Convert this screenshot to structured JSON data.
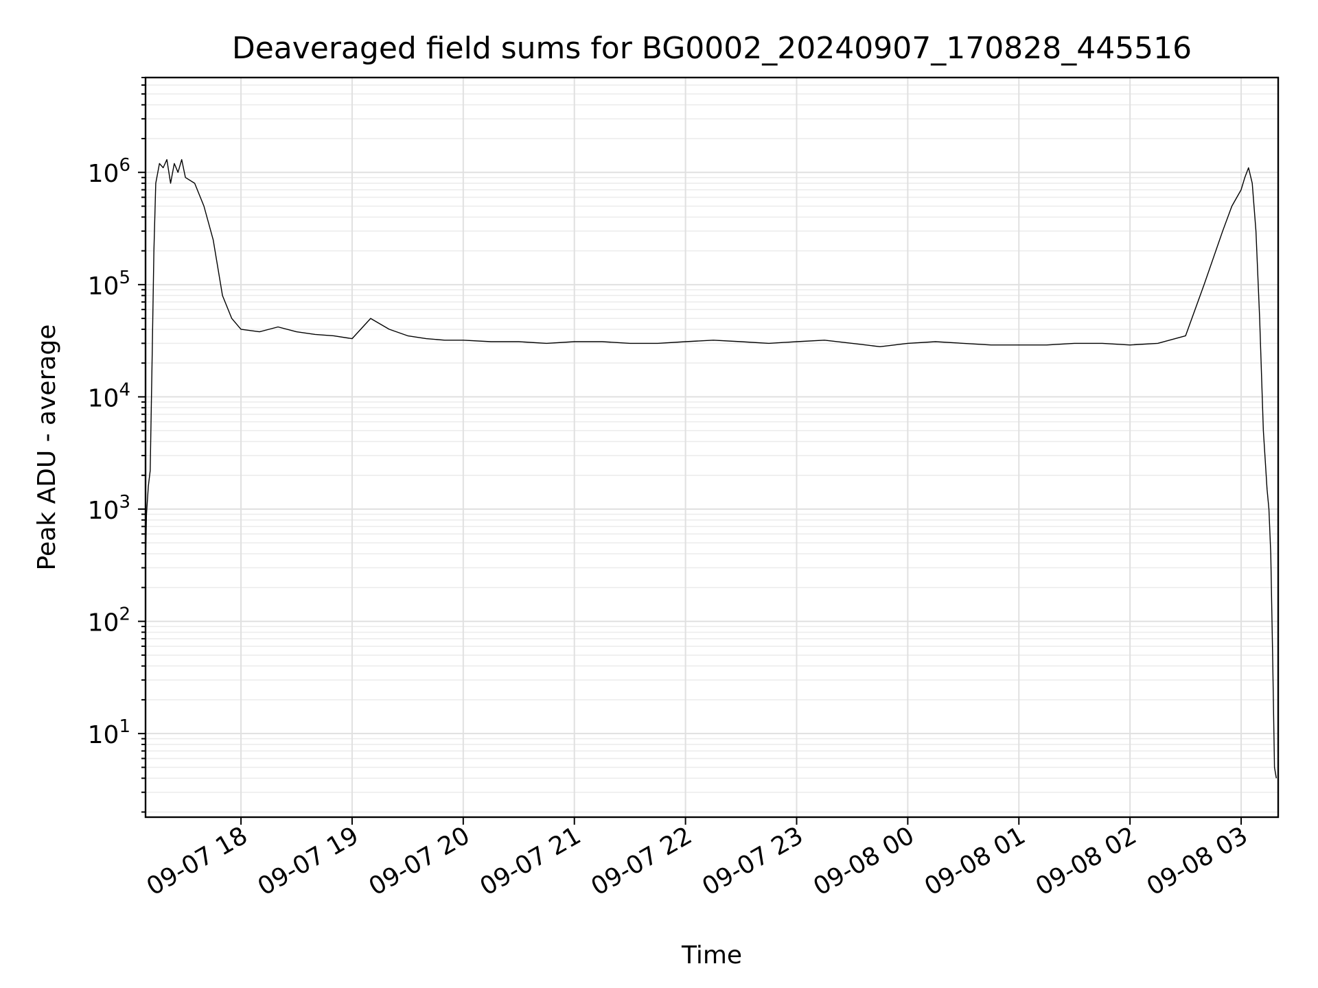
{
  "chart_data": {
    "type": "line",
    "title": "Deaveraged field sums for BG0002_20240907_170828_445516",
    "xlabel": "Time",
    "ylabel": "Peak ADU - average",
    "y_scale": "log",
    "ylim": [
      1.8,
      7000000
    ],
    "xlim": [
      "2024-09-07 17:08:28",
      "2024-09-08 03:20:00"
    ],
    "grid": true,
    "legend": "none",
    "line_color": "#000000",
    "x_ticks": [
      {
        "value": "2024-09-07 18:00",
        "label": "09-07 18"
      },
      {
        "value": "2024-09-07 19:00",
        "label": "09-07 19"
      },
      {
        "value": "2024-09-07 20:00",
        "label": "09-07 20"
      },
      {
        "value": "2024-09-07 21:00",
        "label": "09-07 21"
      },
      {
        "value": "2024-09-07 22:00",
        "label": "09-07 22"
      },
      {
        "value": "2024-09-07 23:00",
        "label": "09-07 23"
      },
      {
        "value": "2024-09-08 00:00",
        "label": "09-08 00"
      },
      {
        "value": "2024-09-08 01:00",
        "label": "09-08 01"
      },
      {
        "value": "2024-09-08 02:00",
        "label": "09-08 02"
      },
      {
        "value": "2024-09-08 03:00",
        "label": "09-08 03"
      }
    ],
    "y_ticks": [
      {
        "value": 10,
        "base": "10",
        "exp": "1"
      },
      {
        "value": 100,
        "base": "10",
        "exp": "2"
      },
      {
        "value": 1000,
        "base": "10",
        "exp": "3"
      },
      {
        "value": 10000,
        "base": "10",
        "exp": "4"
      },
      {
        "value": 100000,
        "base": "10",
        "exp": "5"
      },
      {
        "value": 1000000,
        "base": "10",
        "exp": "6"
      }
    ],
    "series": [
      {
        "x": [
          "2024-09-07 17:08:28",
          "2024-09-07 17:09",
          "2024-09-07 17:10",
          "2024-09-07 17:11",
          "2024-09-07 17:12",
          "2024-09-07 17:13",
          "2024-09-07 17:14",
          "2024-09-07 17:16",
          "2024-09-07 17:18",
          "2024-09-07 17:20",
          "2024-09-07 17:22",
          "2024-09-07 17:24",
          "2024-09-07 17:26",
          "2024-09-07 17:28",
          "2024-09-07 17:30",
          "2024-09-07 17:35",
          "2024-09-07 17:40",
          "2024-09-07 17:45",
          "2024-09-07 17:50",
          "2024-09-07 17:55",
          "2024-09-07 18:00",
          "2024-09-07 18:10",
          "2024-09-07 18:20",
          "2024-09-07 18:30",
          "2024-09-07 18:40",
          "2024-09-07 18:50",
          "2024-09-07 19:00",
          "2024-09-07 19:10",
          "2024-09-07 19:20",
          "2024-09-07 19:30",
          "2024-09-07 19:40",
          "2024-09-07 19:50",
          "2024-09-07 20:00",
          "2024-09-07 20:15",
          "2024-09-07 20:30",
          "2024-09-07 20:45",
          "2024-09-07 21:00",
          "2024-09-07 21:15",
          "2024-09-07 21:30",
          "2024-09-07 21:45",
          "2024-09-07 22:00",
          "2024-09-07 22:15",
          "2024-09-07 22:30",
          "2024-09-07 22:45",
          "2024-09-07 23:00",
          "2024-09-07 23:15",
          "2024-09-07 23:30",
          "2024-09-07 23:45",
          "2024-09-08 00:00",
          "2024-09-08 00:15",
          "2024-09-08 00:30",
          "2024-09-08 00:45",
          "2024-09-08 01:00",
          "2024-09-08 01:15",
          "2024-09-08 01:30",
          "2024-09-08 01:45",
          "2024-09-08 02:00",
          "2024-09-08 02:15",
          "2024-09-08 02:30",
          "2024-09-08 02:40",
          "2024-09-08 02:50",
          "2024-09-08 02:55",
          "2024-09-08 03:00",
          "2024-09-08 03:02",
          "2024-09-08 03:04",
          "2024-09-08 03:06",
          "2024-09-08 03:08",
          "2024-09-08 03:10",
          "2024-09-08 03:12",
          "2024-09-08 03:14",
          "2024-09-08 03:15",
          "2024-09-08 03:16",
          "2024-09-08 03:17",
          "2024-09-08 03:18",
          "2024-09-08 03:19"
        ],
        "y": [
          300,
          900,
          1600,
          2200,
          20000,
          200000,
          800000,
          1200000,
          1100000,
          1300000,
          800000,
          1200000,
          1000000,
          1300000,
          900000,
          800000,
          500000,
          250000,
          80000,
          50000,
          40000,
          38000,
          42000,
          38000,
          36000,
          35000,
          33000,
          50000,
          40000,
          35000,
          33000,
          32000,
          32000,
          31000,
          31000,
          30000,
          31000,
          31000,
          30000,
          30000,
          31000,
          32000,
          31000,
          30000,
          31000,
          32000,
          30000,
          28000,
          30000,
          31000,
          30000,
          29000,
          29000,
          29000,
          30000,
          30000,
          29000,
          30000,
          35000,
          100000,
          300000,
          500000,
          700000,
          900000,
          1100000,
          800000,
          300000,
          50000,
          5000,
          1500,
          1000,
          400,
          50,
          5,
          4
        ]
      }
    ]
  }
}
